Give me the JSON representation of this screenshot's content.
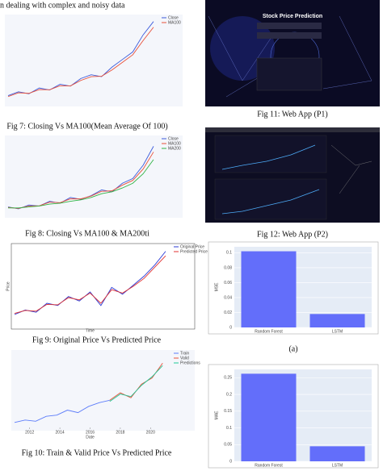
{
  "header_text": "n dealing with complex and noisy data",
  "figures": [
    {
      "caption": "Fig 7: Closing Vs MA100(Mean Average Of 100)",
      "chart": {
        "type": "line",
        "ylim": [
          0,
          45
        ],
        "series": [
          {
            "name": "Close",
            "color": "#3b5bdb",
            "values": [
              4,
              6,
              5,
              8,
              7,
              10,
              9,
              13,
              15,
              14,
              19,
              23,
              27,
              36,
              43
            ]
          },
          {
            "name": "MA100",
            "color": "#e8503a",
            "values": [
              3.5,
              5.5,
              5.2,
              7.2,
              7.1,
              9.2,
              9.1,
              12,
              14,
              14.2,
              17.5,
              21.5,
              25.5,
              33,
              40
            ]
          }
        ]
      }
    },
    {
      "caption": "Fig 8: Closing Vs MA100 & MA200ti",
      "chart": {
        "type": "line",
        "ylim": [
          0,
          80
        ],
        "series": [
          {
            "name": "Close",
            "color": "#3b5bdb",
            "values": [
              8,
              6,
              10,
              9,
              14,
              12,
              18,
              16,
              20,
              26,
              24,
              33,
              38,
              52,
              72
            ]
          },
          {
            "name": "MA100",
            "color": "#e8503a",
            "values": [
              7.5,
              6.5,
              9,
              9.2,
              13,
              12.5,
              16.5,
              16.5,
              19.5,
              24.5,
              25,
              31,
              36,
              48,
              66
            ]
          },
          {
            "name": "MA200",
            "color": "#2fb344",
            "values": [
              7,
              7,
              8,
              9,
              11,
              12,
              14,
              15.5,
              18,
              22,
              24,
              28,
              33,
              43,
              58
            ]
          }
        ]
      }
    },
    {
      "caption": "Fig 9: Original Price Vs Predicted Price",
      "chart": {
        "type": "line",
        "ylim": [
          0,
          35
        ],
        "xlabel": "Time",
        "ylabel": "Price",
        "series": [
          {
            "name": "Original Price",
            "color": "#2b3bd6",
            "values": [
              5,
              7,
              6,
              10,
              9,
              13,
              11,
              15,
              9,
              17,
              14,
              18,
              22,
              27,
              33
            ]
          },
          {
            "name": "Predicted Price",
            "color": "#e03131",
            "values": [
              5.5,
              6.8,
              6.5,
              9.5,
              9.3,
              12.5,
              11.5,
              14.5,
              10,
              16,
              14.5,
              17.5,
              21,
              26,
              31
            ]
          }
        ]
      }
    },
    {
      "caption": "Fig 10: Train & Valid Price Vs Predicted Price",
      "chart": {
        "type": "line",
        "ylim": [
          10,
          70
        ],
        "xlim": [
          2011,
          2021
        ],
        "xticks": [
          2012,
          2014,
          2016,
          2018,
          2020
        ],
        "xlabel": "Date",
        "x": [
          2011,
          2011.7,
          2012.4,
          2013.1,
          2013.8,
          2014.5,
          2015.2,
          2015.9,
          2016.6,
          2017.3,
          2018,
          2018.7,
          2019.4,
          2020.1,
          2020.8
        ],
        "series": [
          {
            "name": "Train",
            "color": "#5c7cfa",
            "values": [
              14,
              16,
              15,
              19,
              20,
              24,
              22,
              27,
              30,
              32,
              null,
              null,
              null,
              null,
              null
            ]
          },
          {
            "name": "Valid",
            "color": "#e8503a",
            "values": [
              null,
              null,
              null,
              null,
              null,
              null,
              null,
              null,
              null,
              32,
              38,
              34,
              45,
              50,
              62
            ]
          },
          {
            "name": "Predictions",
            "color": "#20c997",
            "values": [
              null,
              null,
              null,
              null,
              null,
              null,
              null,
              null,
              null,
              31,
              37,
              35,
              44,
              51,
              60
            ]
          }
        ]
      }
    }
  ],
  "screenshots": [
    {
      "title": "Stock Price Prediction",
      "caption": "Fig 11: Web App (P1)"
    },
    {
      "caption": "Fig 12: Web App (P2)"
    }
  ],
  "bar_charts": [
    {
      "type": "bar",
      "caption": "(a)",
      "ylabel": "MSE",
      "categories": [
        "Random Forest",
        "LSTM"
      ],
      "values": [
        0.102,
        0.018
      ],
      "color": "#636efa",
      "ylim": [
        0,
        0.108
      ],
      "yticks": [
        0,
        0.02,
        0.04,
        0.06,
        0.08,
        0.1
      ]
    },
    {
      "type": "bar",
      "ylabel": "MAE",
      "categories": [
        "Random Forest",
        "LSTM"
      ],
      "values": [
        0.262,
        0.045
      ],
      "color": "#636efa",
      "ylim": [
        0,
        0.275
      ],
      "yticks": [
        0,
        0.05,
        0.1,
        0.15,
        0.2,
        0.25
      ]
    }
  ]
}
